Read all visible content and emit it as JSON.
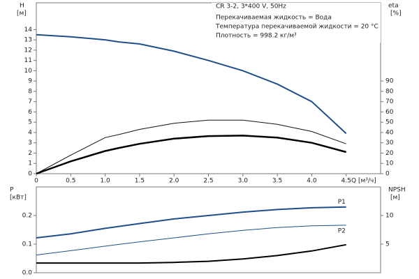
{
  "chart_data": [
    {
      "type": "line",
      "title": "CR 3-2, 3*400 V, 50Hz",
      "info_lines": [
        "Перекачиваемая жидкость = Вода",
        "Температура перекачиваемой жидкости = 20 °C",
        "Плотность = 998.2 кг/м³"
      ],
      "y_label": "H",
      "y_unit": "[м]",
      "y2_label": "eta",
      "y2_unit": "[%]",
      "x_label": "Q [м³/ч]",
      "x": [
        0,
        0.5,
        1.0,
        1.2,
        1.5,
        2.0,
        2.5,
        3.0,
        3.5,
        4.0,
        4.5
      ],
      "xlim": [
        0,
        5
      ],
      "xticks": [
        0,
        0.5,
        {
          "value": 1,
          "label": "1.0"
        },
        1.5,
        {
          "value": 2,
          "label": "2.0"
        },
        2.5,
        {
          "value": 3,
          "label": "3.0"
        },
        3.5,
        {
          "value": 4,
          "label": "4.0"
        },
        4.5
      ],
      "ylim": [
        0,
        16.6
      ],
      "yticks": [
        0,
        1,
        2,
        3,
        4,
        5,
        6,
        7,
        8,
        9,
        10,
        11,
        12,
        13,
        14
      ],
      "y2lim": [
        0,
        166
      ],
      "y2ticks": [
        0,
        10,
        20,
        30,
        40,
        50,
        60,
        70,
        80,
        90
      ],
      "series": [
        {
          "color": "#1f4e8c",
          "width": 2,
          "values": [
            13.5,
            13.3,
            13.0,
            12.8,
            12.6,
            11.9,
            11.0,
            10.0,
            8.7,
            7.0,
            3.9
          ]
        },
        {
          "color": "#111111",
          "width": 1,
          "axis": "y2",
          "values": [
            0,
            18,
            35,
            38,
            43,
            49,
            52,
            52,
            48,
            41,
            29
          ]
        },
        {
          "color": "#000000",
          "width": 2.5,
          "axis": "y2",
          "values": [
            0,
            12,
            22,
            25,
            29,
            34,
            36.5,
            37,
            35,
            30,
            21
          ]
        }
      ]
    },
    {
      "type": "line",
      "y_label": "P",
      "y_unit": "[кВт]",
      "y2_label": "NPSH",
      "y2_unit": "[м]",
      "x": [
        0,
        0.5,
        1.0,
        1.2,
        1.5,
        2.0,
        2.5,
        3.0,
        3.5,
        4.0,
        4.5
      ],
      "xlim": [
        0,
        5
      ],
      "ylim": [
        0,
        0.3
      ],
      "yticks": [
        {
          "value": 0,
          "label": "0.0"
        },
        0.1,
        0.2
      ],
      "y2lim": [
        0,
        15
      ],
      "y2ticks": [
        5,
        10
      ],
      "series": [
        {
          "name": "P1",
          "color": "#1f4e8c",
          "width": 2,
          "values": [
            0.122,
            0.136,
            0.155,
            0.162,
            0.172,
            0.188,
            0.2,
            0.212,
            0.221,
            0.227,
            0.23
          ]
        },
        {
          "name": "P2",
          "color": "#1f4e8c",
          "width": 1,
          "values": [
            0.062,
            0.077,
            0.093,
            0.099,
            0.108,
            0.122,
            0.136,
            0.148,
            0.158,
            0.164,
            0.166
          ]
        },
        {
          "color": "#000000",
          "width": 2,
          "axis": "y2",
          "values": [
            1.7,
            1.7,
            1.7,
            1.7,
            1.7,
            1.8,
            2.0,
            2.4,
            3.0,
            3.8,
            4.9
          ]
        }
      ]
    }
  ]
}
